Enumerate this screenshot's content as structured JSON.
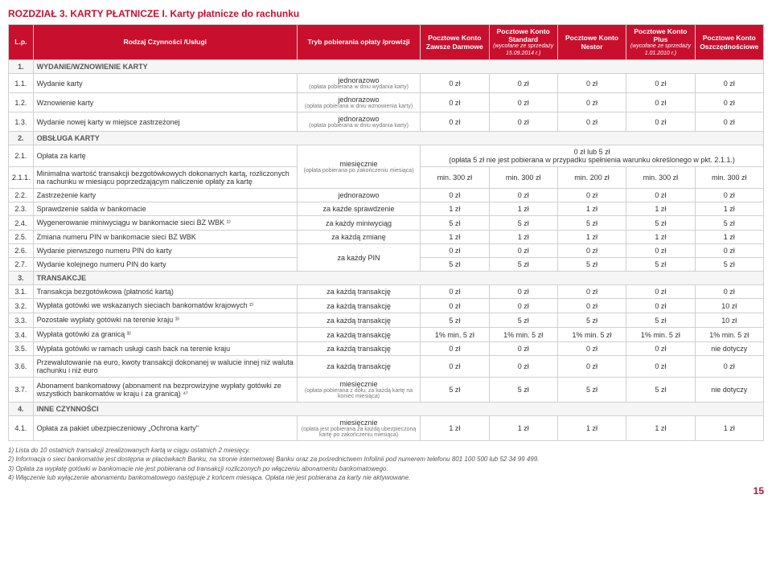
{
  "title": "ROZDZIAŁ 3. KARTY PŁATNICZE I. Karty płatnicze do rachunku",
  "headers": {
    "lp": "L.p.",
    "desc": "Rodzaj Czynności /Usługi",
    "tryb": "Tryb pobierania opłaty /prowizji",
    "c1": "Pocztowe Konto Zawsze Darmowe",
    "c2": "Pocztowe Konto Standard",
    "c2sub": "(wycofane ze sprzedaży 15.09.2014 r.)",
    "c3": "Pocztowe Konto Nestor",
    "c4": "Pocztowe Konto Plus",
    "c4sub": "(wycofane ze sprzedaży 1.01.2010 r.)",
    "c5": "Pocztowe Konto Oszczędnościowe"
  },
  "sections": [
    {
      "lp": "1.",
      "title": "WYDANIE/WZNOWIENIE KARTY"
    },
    {
      "lp": "2.",
      "title": "OBSŁUGA KARTY"
    },
    {
      "lp": "3.",
      "title": "TRANSAKCJE"
    },
    {
      "lp": "4.",
      "title": "INNE CZYNNOŚCI"
    }
  ],
  "rows": {
    "r11": {
      "lp": "1.1.",
      "desc": "Wydanie karty",
      "trybMain": "jednorazowo",
      "trybSub": "(opłata pobierana w dniu wydania karty)",
      "v": [
        "0 zł",
        "0 zł",
        "0 zł",
        "0 zł",
        "0 zł"
      ]
    },
    "r12": {
      "lp": "1.2.",
      "desc": "Wznowienie karty",
      "trybMain": "jednorazowo",
      "trybSub": "(opłata pobierana w dniu wznowienia karty)",
      "v": [
        "0 zł",
        "0 zł",
        "0 zł",
        "0 zł",
        "0 zł"
      ]
    },
    "r13": {
      "lp": "1.3.",
      "desc": "Wydanie nowej karty w miejsce zastrzeżonej",
      "trybMain": "jednorazowo",
      "trybSub": "(opłata pobierana w dniu wydania karty)",
      "v": [
        "0 zł",
        "0 zł",
        "0 zł",
        "0 zł",
        "0 zł"
      ]
    },
    "r21": {
      "lp": "2.1.",
      "desc": "Opłata za kartę",
      "trybMain": "miesięcznie",
      "trybSub": "(opłata pobierana po zakończeniu miesiąca)",
      "merged": "0 zł lub 5 zł\n(opłata 5 zł nie jest pobierana w przypadku spełnienia warunku określonego w pkt. 2.1.1.)"
    },
    "r211": {
      "lp": "2.1.1.",
      "desc": "Minimalna wartość transakcji bezgotówkowych dokonanych kartą, rozliczonych na rachunku w miesiącu poprzedzającym naliczenie opłaty za kartę",
      "v": [
        "min. 300 zł",
        "min. 300 zł",
        "min. 200 zł",
        "min. 300 zł",
        "min. 300 zł"
      ]
    },
    "r22": {
      "lp": "2.2.",
      "desc": "Zastrzeżenie karty",
      "trybMain": "jednorazowo",
      "v": [
        "0 zł",
        "0 zł",
        "0 zł",
        "0 zł",
        "0 zł"
      ]
    },
    "r23": {
      "lp": "2.3.",
      "desc": "Sprawdzenie salda w bankomacie",
      "trybMain": "za każde sprawdzenie",
      "v": [
        "1 zł",
        "1 zł",
        "1 zł",
        "1 zł",
        "1 zł"
      ]
    },
    "r24": {
      "lp": "2.4.",
      "desc": "Wygenerowanie miniwyciągu w bankomacie sieci BZ WBK ¹⁾",
      "trybMain": "za każdy miniwyciąg",
      "v": [
        "5 zł",
        "5 zł",
        "5 zł",
        "5 zł",
        "5 zł"
      ]
    },
    "r25": {
      "lp": "2.5.",
      "desc": "Zmiana numeru PIN w bankomacie sieci BZ WBK",
      "trybMain": "za każdą zmianę",
      "v": [
        "1 zł",
        "1 zł",
        "1 zł",
        "1 zł",
        "1 zł"
      ]
    },
    "r26": {
      "lp": "2.6.",
      "desc": "Wydanie pierwszego numeru PIN do karty",
      "trybMain": "za każdy PIN",
      "v": [
        "0 zł",
        "0 zł",
        "0 zł",
        "0 zł",
        "0 zł"
      ]
    },
    "r27": {
      "lp": "2.7.",
      "desc": "Wydanie kolejnego numeru PIN do karty",
      "v": [
        "5 zł",
        "5 zł",
        "5 zł",
        "5 zł",
        "5 zł"
      ]
    },
    "r31": {
      "lp": "3.1.",
      "desc": "Transakcja bezgotówkowa (płatność kartą)",
      "trybMain": "za każdą transakcję",
      "v": [
        "0 zł",
        "0 zł",
        "0 zł",
        "0 zł",
        "0 zł"
      ]
    },
    "r32": {
      "lp": "3.2.",
      "desc": "Wypłata gotówki we wskazanych sieciach bankomatów krajowych ²⁾",
      "trybMain": "za każdą transakcję",
      "v": [
        "0 zł",
        "0 zł",
        "0 zł",
        "0 zł",
        "10 zł"
      ]
    },
    "r33": {
      "lp": "3.3.",
      "desc": "Pozostałe wypłaty gotówki na terenie kraju ³⁾",
      "trybMain": "za każdą transakcję",
      "v": [
        "5 zł",
        "5 zł",
        "5 zł",
        "5 zł",
        "10 zł"
      ]
    },
    "r34": {
      "lp": "3.4.",
      "desc": "Wypłata gotówki za granicą ³⁾",
      "trybMain": "za każdą transakcję",
      "v": [
        "1% min. 5 zł",
        "1% min. 5 zł",
        "1% min. 5 zł",
        "1% min. 5 zł",
        "1% min. 5 zł"
      ]
    },
    "r35": {
      "lp": "3.5.",
      "desc": "Wypłata gotówki w ramach usługi cash back na terenie kraju",
      "trybMain": "za każdą transakcję",
      "v": [
        "0 zł",
        "0 zł",
        "0 zł",
        "0 zł",
        "nie dotyczy"
      ]
    },
    "r36": {
      "lp": "3.6.",
      "desc": "Przewalutowanie na euro, kwoty transakcji dokonanej w walucie innej niż waluta rachunku i niż euro",
      "trybMain": "za każdą transakcję",
      "v": [
        "0 zł",
        "0 zł",
        "0 zł",
        "0 zł",
        "0 zł"
      ]
    },
    "r37": {
      "lp": "3.7.",
      "desc": "Abonament bankomatowy (abonament na bezprowizyjne wypłaty gotówki ze wszystkich bankomatów w kraju i za granicą) ⁴⁾",
      "trybMain": "miesięcznie",
      "trybSub": "(opłata pobierana z dołu, za każdą kartę na koniec miesiąca)",
      "v": [
        "5 zł",
        "5 zł",
        "5 zł",
        "5 zł",
        "nie dotyczy"
      ]
    },
    "r41": {
      "lp": "4.1.",
      "desc": "Opłata za pakiet ubezpieczeniowy „Ochrona karty\"",
      "trybMain": "miesięcznie",
      "trybSub": "(opłata jest pobierana za każdą ubezpieczoną kartę po zakończeniu miesiąca)",
      "v": [
        "1 zł",
        "1 zł",
        "1 zł",
        "1 zł",
        "1 zł"
      ]
    }
  },
  "footnotes": [
    "1) Lista do 10 ostatnich transakcji zrealizowanych kartą w ciągu ostatnich 2 miesięcy.",
    "2) Informacja o sieci bankomatów jest dostępna w placówkach Banku, na stronie internetowej Banku oraz za pośrednictwem Infolinii pod numerem telefonu 801 100 500 lub 52 34 99 499.",
    "3) Opłata za wypłatę gotówki w bankomacie nie jest pobierana od transakcji rozliczonych po włączeniu abonamentu bankomatowego.",
    "4) Włączenie lub wyłączenie abonamentu bankomatowego następuje z końcem miesiąca. Opłata nie jest pobierana za karty nie aktywowane."
  ],
  "pageNum": "15"
}
